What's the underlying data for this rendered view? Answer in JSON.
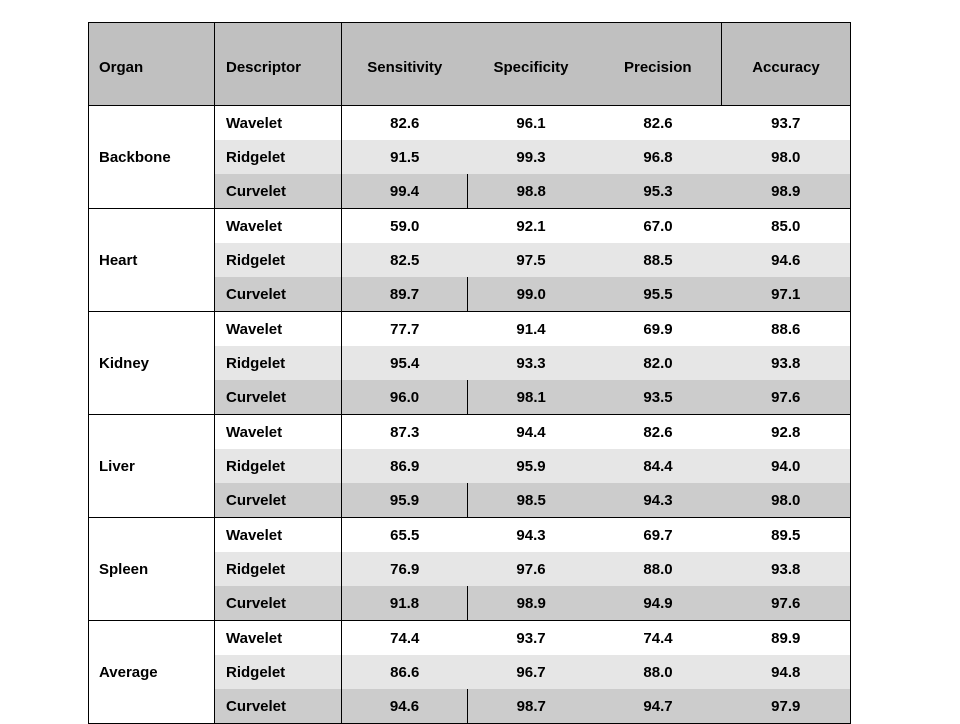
{
  "chart_data": {
    "type": "table",
    "columns": [
      "Organ",
      "Descriptor",
      "Sensitivity",
      "Specificity",
      "Precision",
      "Accuracy"
    ],
    "groups": [
      {
        "organ": "Backbone",
        "rows": [
          {
            "descriptor": "Wavelet",
            "values": [
              "82.6",
              "96.1",
              "82.6",
              "93.7"
            ]
          },
          {
            "descriptor": "Ridgelet",
            "values": [
              "91.5",
              "99.3",
              "96.8",
              "98.0"
            ]
          },
          {
            "descriptor": "Curvelet",
            "values": [
              "99.4",
              "98.8",
              "95.3",
              "98.9"
            ]
          }
        ]
      },
      {
        "organ": "Heart",
        "rows": [
          {
            "descriptor": "Wavelet",
            "values": [
              "59.0",
              "92.1",
              "67.0",
              "85.0"
            ]
          },
          {
            "descriptor": "Ridgelet",
            "values": [
              "82.5",
              "97.5",
              "88.5",
              "94.6"
            ]
          },
          {
            "descriptor": "Curvelet",
            "values": [
              "89.7",
              "99.0",
              "95.5",
              "97.1"
            ]
          }
        ]
      },
      {
        "organ": "Kidney",
        "rows": [
          {
            "descriptor": "Wavelet",
            "values": [
              "77.7",
              "91.4",
              "69.9",
              "88.6"
            ]
          },
          {
            "descriptor": "Ridgelet",
            "values": [
              "95.4",
              "93.3",
              "82.0",
              "93.8"
            ]
          },
          {
            "descriptor": "Curvelet",
            "values": [
              "96.0",
              "98.1",
              "93.5",
              "97.6"
            ]
          }
        ]
      },
      {
        "organ": "Liver",
        "rows": [
          {
            "descriptor": "Wavelet",
            "values": [
              "87.3",
              "94.4",
              "82.6",
              "92.8"
            ]
          },
          {
            "descriptor": "Ridgelet",
            "values": [
              "86.9",
              "95.9",
              "84.4",
              "94.0"
            ]
          },
          {
            "descriptor": "Curvelet",
            "values": [
              "95.9",
              "98.5",
              "94.3",
              "98.0"
            ]
          }
        ]
      },
      {
        "organ": "Spleen",
        "rows": [
          {
            "descriptor": "Wavelet",
            "values": [
              "65.5",
              "94.3",
              "69.7",
              "89.5"
            ]
          },
          {
            "descriptor": "Ridgelet",
            "values": [
              "76.9",
              "97.6",
              "88.0",
              "93.8"
            ]
          },
          {
            "descriptor": "Curvelet",
            "values": [
              "91.8",
              "98.9",
              "94.9",
              "97.6"
            ]
          }
        ]
      },
      {
        "organ": "Average",
        "rows": [
          {
            "descriptor": "Wavelet",
            "values": [
              "74.4",
              "93.7",
              "74.4",
              "89.9"
            ]
          },
          {
            "descriptor": "Ridgelet",
            "values": [
              "86.6",
              "96.7",
              "88.0",
              "94.8"
            ]
          },
          {
            "descriptor": "Curvelet",
            "values": [
              "94.6",
              "98.7",
              "94.7",
              "97.9"
            ]
          }
        ]
      }
    ]
  }
}
